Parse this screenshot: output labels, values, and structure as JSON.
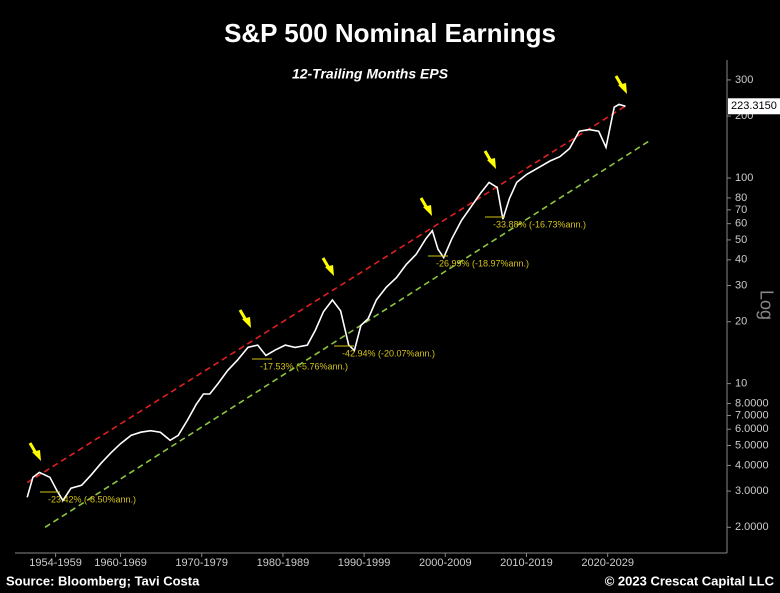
{
  "chart_data": {
    "type": "line",
    "title": "S&P 500 Nominal Earnings",
    "subtitle": "12-Trailing Months EPS",
    "y_axis_label": "Log",
    "log_scale": true,
    "xlim": [
      1952,
      2039.7
    ],
    "ylim": [
      1.5,
      375
    ],
    "xticks": [
      {
        "value": 1957,
        "label": "1954-1959"
      },
      {
        "value": 1965,
        "label": "1960-1969"
      },
      {
        "value": 1975,
        "label": "1970-1979"
      },
      {
        "value": 1985,
        "label": "1980-1989"
      },
      {
        "value": 1995,
        "label": "1990-1999"
      },
      {
        "value": 2005,
        "label": "2000-2009"
      },
      {
        "value": 2015,
        "label": "2010-2019"
      },
      {
        "value": 2025,
        "label": "2020-2029"
      }
    ],
    "yticks": [
      {
        "value": 2,
        "label": "2.0000"
      },
      {
        "value": 3,
        "label": "3.0000"
      },
      {
        "value": 4,
        "label": "4.0000"
      },
      {
        "value": 5,
        "label": "5.0000"
      },
      {
        "value": 6,
        "label": "6.0000"
      },
      {
        "value": 7,
        "label": "7.0000"
      },
      {
        "value": 8,
        "label": "8.0000"
      },
      10,
      20,
      30,
      40,
      50,
      60,
      70,
      80,
      100,
      200,
      300
    ],
    "series": [
      {
        "name": "12-Trailing Months EPS",
        "color": "#ffffff",
        "x": [
          1953.5,
          1954.2,
          1955.0,
          1956.3,
          1957.2,
          1957.9,
          1958.9,
          1960.2,
          1961.4,
          1962.6,
          1963.8,
          1965.0,
          1966.3,
          1967.5,
          1968.7,
          1969.9,
          1971.1,
          1972.1,
          1973.3,
          1974.3,
          1975.2,
          1976.0,
          1977.0,
          1978.2,
          1979.4,
          1980.7,
          1981.9,
          1982.9,
          1984.1,
          1985.3,
          1986.5,
          1988.0,
          1989.0,
          1990.0,
          1991.1,
          1992.1,
          1993.1,
          1993.8,
          1994.6,
          1995.5,
          1996.5,
          1997.7,
          1999.0,
          2000.2,
          2001.4,
          2002.6,
          2003.4,
          2004.1,
          2004.8,
          2005.8,
          2007.0,
          2008.2,
          2009.4,
          2010.4,
          2011.4,
          2012.1,
          2012.9,
          2013.8,
          2015.0,
          2016.6,
          2017.9,
          2019.1,
          2020.3,
          2021.5,
          2022.7,
          2023.9,
          2024.8,
          2025.8,
          2026.4,
          2027.2
        ],
        "values": [
          2.8,
          3.5,
          3.7,
          3.5,
          3.0,
          2.7,
          3.1,
          3.2,
          3.6,
          4.1,
          4.6,
          5.1,
          5.6,
          5.8,
          5.9,
          5.8,
          5.3,
          5.6,
          6.7,
          7.9,
          8.9,
          8.9,
          10.0,
          11.6,
          13.0,
          15.0,
          15.4,
          13.7,
          14.6,
          15.4,
          15.0,
          15.4,
          18.2,
          22.4,
          25.5,
          22.6,
          15.4,
          14.5,
          19.2,
          20.7,
          25.5,
          29.3,
          32.8,
          38.0,
          42.5,
          50.6,
          55.4,
          45.0,
          41.0,
          50.6,
          62.2,
          72.8,
          84.9,
          95.2,
          89.9,
          63.1,
          79.4,
          95.2,
          104,
          113,
          121,
          127,
          139,
          169,
          172,
          169,
          141,
          221,
          228,
          223.315
        ]
      }
    ],
    "last_value_label": {
      "value": 223.315,
      "label": "223.3150"
    },
    "trend_lines": [
      {
        "color": "#e02020",
        "x": [
          1953.5,
          2027.2
        ],
        "values": [
          3.3,
          224
        ]
      },
      {
        "color": "#8cc63f",
        "x": [
          1955.7,
          2030.3
        ],
        "values": [
          2.0,
          153
        ]
      }
    ],
    "annotations": [
      "-23.42% (-8.50%ann.)",
      "-17.53% (-5.76%ann.)",
      "-42.94% (-20.07%ann.)",
      "-26.99% (-18.97%ann.)",
      "-33.88% (-16.73%ann.)"
    ],
    "annotation_color": "#d4c21a",
    "arrow_color": "#ffff00",
    "source": "Source: Bloomberg; Tavi Costa",
    "copyright": "© 2023 Crescat Capital LLC"
  }
}
